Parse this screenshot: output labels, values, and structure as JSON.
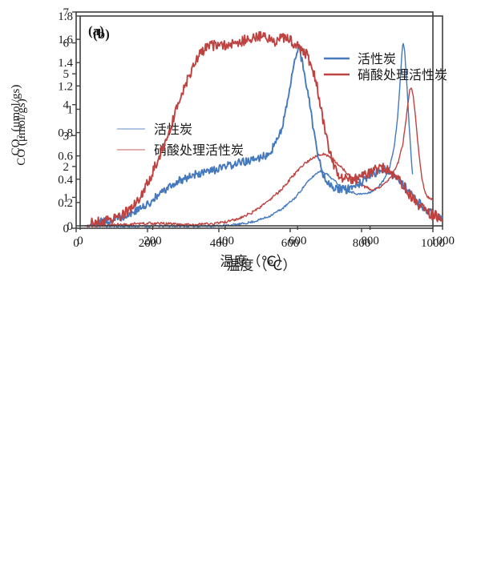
{
  "page": {
    "background": "#ffffff"
  },
  "chart_data": [
    {
      "type": "line",
      "panel_label": "(a)",
      "panel_label_color": "#1a1a1a",
      "xlabel": "温度（℃）",
      "ylabel": "CO (μmol/gs)",
      "xlim": [
        0,
        1000
      ],
      "ylim": [
        0,
        7
      ],
      "x_tick_labels": [
        "0",
        "200",
        "400",
        "600",
        "800",
        "1000"
      ],
      "y_tick_labels": [
        "0",
        "1",
        "2",
        "3",
        "4",
        "5",
        "6",
        "7"
      ],
      "axis_color": "#3f3f3f",
      "grid": "off",
      "legend_position": "inside-left",
      "series": [
        {
          "label": "活性炭",
          "color": "#4479BD",
          "legend_color": "#95B3D7",
          "noise": 0.035,
          "points": [
            [
              25,
              0.08
            ],
            [
              80,
              0.07
            ],
            [
              150,
              0.06
            ],
            [
              220,
              0.07
            ],
            [
              300,
              0.07
            ],
            [
              370,
              0.07
            ],
            [
              420,
              0.09
            ],
            [
              460,
              0.13
            ],
            [
              500,
              0.22
            ],
            [
              540,
              0.38
            ],
            [
              580,
              0.65
            ],
            [
              615,
              1.0
            ],
            [
              645,
              1.45
            ],
            [
              668,
              1.72
            ],
            [
              682,
              1.85
            ],
            [
              698,
              1.8
            ],
            [
              715,
              1.63
            ],
            [
              740,
              1.38
            ],
            [
              765,
              1.2
            ],
            [
              792,
              1.1
            ],
            [
              818,
              1.13
            ],
            [
              842,
              1.28
            ],
            [
              862,
              1.55
            ],
            [
              878,
              1.95
            ],
            [
              892,
              2.65
            ],
            [
              902,
              3.7
            ],
            [
              909,
              4.9
            ],
            [
              914,
              5.85
            ],
            [
              917,
              6.0
            ],
            [
              921,
              5.75
            ],
            [
              927,
              4.7
            ],
            [
              933,
              3.4
            ],
            [
              939,
              2.3
            ],
            [
              943,
              1.75
            ]
          ]
        },
        {
          "label": "硝酸处理活性炭",
          "color": "#BE4340",
          "legend_color": "#D99694",
          "noise": 0.045,
          "points": [
            [
              25,
              0.07
            ],
            [
              90,
              0.1
            ],
            [
              160,
              0.14
            ],
            [
              210,
              0.16
            ],
            [
              260,
              0.14
            ],
            [
              320,
              0.11
            ],
            [
              380,
              0.14
            ],
            [
              420,
              0.2
            ],
            [
              460,
              0.33
            ],
            [
              500,
              0.55
            ],
            [
              540,
              0.88
            ],
            [
              575,
              1.25
            ],
            [
              610,
              1.72
            ],
            [
              640,
              2.08
            ],
            [
              665,
              2.3
            ],
            [
              688,
              2.4
            ],
            [
              705,
              2.36
            ],
            [
              725,
              2.18
            ],
            [
              748,
              1.92
            ],
            [
              775,
              1.62
            ],
            [
              802,
              1.38
            ],
            [
              828,
              1.25
            ],
            [
              848,
              1.3
            ],
            [
              868,
              1.48
            ],
            [
              888,
              1.78
            ],
            [
              903,
              2.15
            ],
            [
              915,
              2.7
            ],
            [
              924,
              3.45
            ],
            [
              930,
              4.05
            ],
            [
              935,
              4.5
            ],
            [
              940,
              4.55
            ],
            [
              946,
              4.2
            ],
            [
              953,
              3.4
            ],
            [
              960,
              2.5
            ],
            [
              968,
              1.7
            ],
            [
              976,
              1.2
            ],
            [
              985,
              1.0
            ],
            [
              1000,
              0.95
            ]
          ]
        }
      ]
    },
    {
      "type": "line",
      "panel_label": "(b)",
      "panel_label_color": "#203864",
      "xlabel": "温度（℃）",
      "ylabel": "CO₂ (μmol/gs)",
      "xlim": [
        0,
        1000
      ],
      "ylim": [
        0,
        1.8
      ],
      "x_tick_labels": [
        "0",
        "200",
        "400",
        "600",
        "800",
        "1000"
      ],
      "y_tick_labels": [
        "0",
        "0.2",
        "0.4",
        "0.6",
        "0.8",
        "1",
        "1.2",
        "1.4",
        "1.6",
        "1.8"
      ],
      "axis_color": "#3f3f3f",
      "grid": "off",
      "legend_position": "inside-right",
      "series": [
        {
          "label": "活性炭",
          "color": "#4479BD",
          "legend_color": "#4479BD",
          "noise": 0.035,
          "points": [
            [
              30,
              0.02
            ],
            [
              70,
              0.04
            ],
            [
              110,
              0.07
            ],
            [
              150,
              0.12
            ],
            [
              185,
              0.18
            ],
            [
              215,
              0.26
            ],
            [
              245,
              0.33
            ],
            [
              275,
              0.39
            ],
            [
              305,
              0.43
            ],
            [
              335,
              0.45
            ],
            [
              365,
              0.47
            ],
            [
              395,
              0.5
            ],
            [
              425,
              0.53
            ],
            [
              455,
              0.55
            ],
            [
              485,
              0.57
            ],
            [
              510,
              0.6
            ],
            [
              530,
              0.66
            ],
            [
              550,
              0.78
            ],
            [
              565,
              0.95
            ],
            [
              578,
              1.15
            ],
            [
              588,
              1.35
            ],
            [
              596,
              1.48
            ],
            [
              602,
              1.52
            ],
            [
              608,
              1.47
            ],
            [
              618,
              1.33
            ],
            [
              628,
              1.15
            ],
            [
              638,
              0.95
            ],
            [
              648,
              0.75
            ],
            [
              658,
              0.58
            ],
            [
              670,
              0.45
            ],
            [
              685,
              0.37
            ],
            [
              700,
              0.33
            ],
            [
              715,
              0.31
            ],
            [
              735,
              0.31
            ],
            [
              760,
              0.34
            ],
            [
              785,
              0.39
            ],
            [
              810,
              0.44
            ],
            [
              832,
              0.48
            ],
            [
              845,
              0.49
            ],
            [
              860,
              0.46
            ],
            [
              880,
              0.4
            ],
            [
              905,
              0.3
            ],
            [
              930,
              0.21
            ],
            [
              955,
              0.14
            ],
            [
              980,
              0.09
            ],
            [
              1000,
              0.07
            ]
          ]
        },
        {
          "label": "硝酸处理活性炭",
          "color": "#BE4340",
          "legend_color": "#BE4340",
          "noise": 0.045,
          "points": [
            [
              30,
              0.02
            ],
            [
              70,
              0.04
            ],
            [
              105,
              0.08
            ],
            [
              135,
              0.13
            ],
            [
              165,
              0.24
            ],
            [
              195,
              0.42
            ],
            [
              225,
              0.65
            ],
            [
              255,
              0.9
            ],
            [
              280,
              1.13
            ],
            [
              305,
              1.32
            ],
            [
              325,
              1.45
            ],
            [
              345,
              1.52
            ],
            [
              370,
              1.55
            ],
            [
              400,
              1.55
            ],
            [
              430,
              1.56
            ],
            [
              460,
              1.6
            ],
            [
              490,
              1.63
            ],
            [
              515,
              1.62
            ],
            [
              535,
              1.57
            ],
            [
              555,
              1.63
            ],
            [
              575,
              1.6
            ],
            [
              595,
              1.55
            ],
            [
              610,
              1.52
            ],
            [
              625,
              1.47
            ],
            [
              640,
              1.36
            ],
            [
              655,
              1.18
            ],
            [
              668,
              0.95
            ],
            [
              682,
              0.72
            ],
            [
              695,
              0.56
            ],
            [
              710,
              0.46
            ],
            [
              728,
              0.4
            ],
            [
              748,
              0.39
            ],
            [
              770,
              0.41
            ],
            [
              795,
              0.45
            ],
            [
              815,
              0.48
            ],
            [
              832,
              0.5
            ],
            [
              852,
              0.47
            ],
            [
              875,
              0.41
            ],
            [
              900,
              0.31
            ],
            [
              925,
              0.21
            ],
            [
              950,
              0.13
            ],
            [
              975,
              0.09
            ],
            [
              1000,
              0.07
            ]
          ]
        }
      ]
    }
  ]
}
